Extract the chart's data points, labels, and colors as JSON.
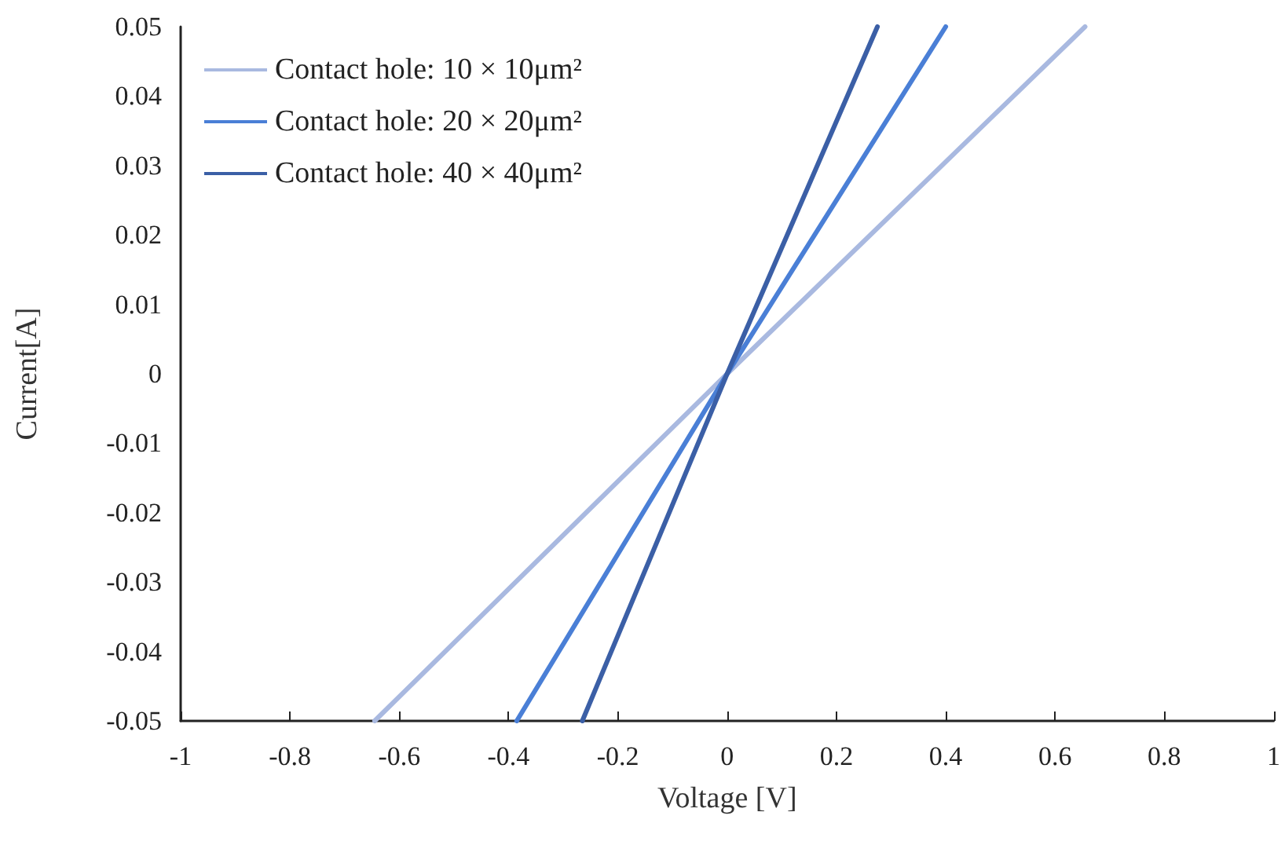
{
  "chart_data": {
    "type": "line",
    "xlabel": "Voltage [V]",
    "ylabel": "Current[A]",
    "xlim": [
      -1,
      1
    ],
    "xticks": [
      -1,
      -0.8,
      -0.6,
      -0.4,
      -0.2,
      0,
      0.2,
      0.4,
      0.6,
      0.8,
      1
    ],
    "ylim": [
      -0.05,
      0.05
    ],
    "yticks": [
      -0.05,
      -0.04,
      -0.03,
      -0.02,
      -0.01,
      0,
      0.01,
      0.02,
      0.03,
      0.04,
      0.05
    ],
    "grid": false,
    "legend": "top left",
    "marker": "none",
    "line_style": "solid",
    "series": [
      {
        "name": "Contact hole: 10 × 10μm²",
        "color": "#a9b9e0",
        "x": [
          -0.645,
          0,
          0.655
        ],
        "values": [
          -0.05,
          0,
          0.05
        ]
      },
      {
        "name": "Contact hole: 20 × 20μm²",
        "color": "#4a7fd6",
        "x": [
          -0.385,
          0,
          0.4
        ],
        "values": [
          -0.05,
          0,
          0.05
        ]
      },
      {
        "name": "Contact hole: 40 × 40μm²",
        "color": "#3b5fa6",
        "x": [
          -0.265,
          0,
          0.275
        ],
        "values": [
          -0.05,
          0,
          0.05
        ]
      }
    ]
  }
}
